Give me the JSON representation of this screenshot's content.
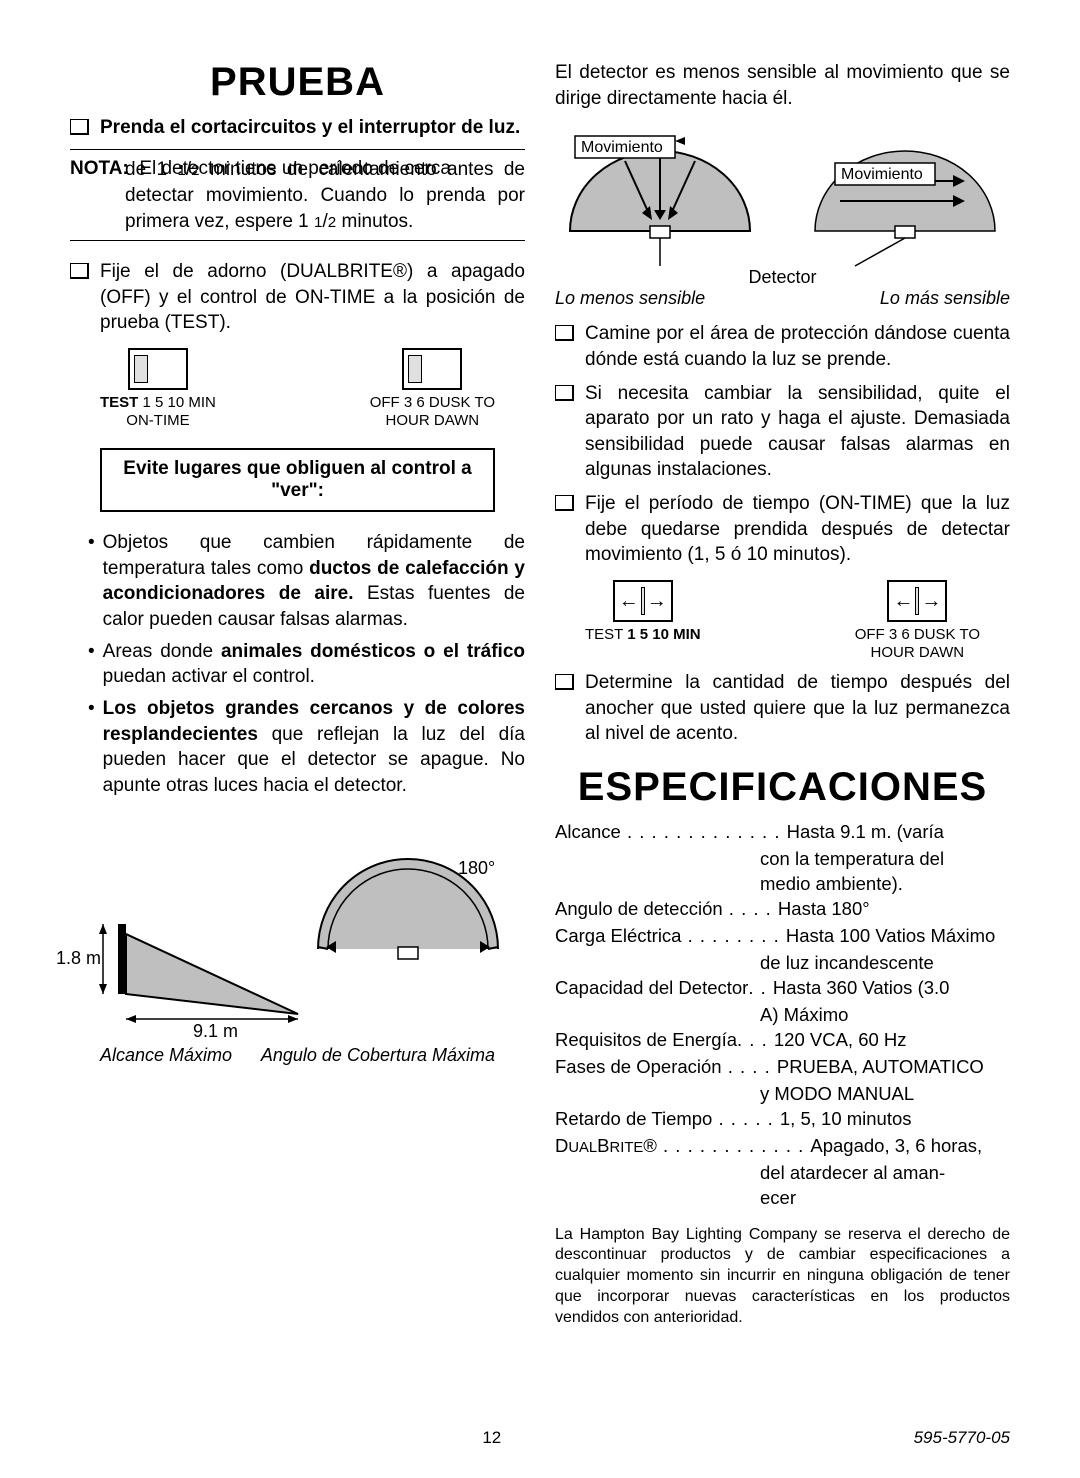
{
  "left": {
    "h1": "PRUEBA",
    "chk1": "Prenda el cortacircuitos y el interruptor de luz.",
    "nota_lead": "NOTA:",
    "nota_body": "El detector tiene un período de cerca de 1 ¹/₂ minutos de calentamiento antes de detectar movimiento. Cuando lo prenda por primera vez, espere 1 ¹/₂ minutos.",
    "chk2_pre": "Fije el de adorno (D",
    "chk2_brand": "UAL",
    "chk2_brand2": "B",
    "chk2_brand3": "RITE",
    "chk2_post": "®) a apagado (OFF) y el control de ON-TIME a la posición de prueba (TEST).",
    "sw1": {
      "line1_bold": "TEST",
      "line1": " 1 5 10 MIN",
      "line2": "ON-TIME"
    },
    "sw2": {
      "line1_bold": "OFF  3  6  DUSK TO",
      "line2_bold": "HOUR   DAWN"
    },
    "avoid": "Evite lugares que obliguen al control a \"ver\":",
    "b1_pre": "Objetos que cambien rápidamente de temperatura tales como ",
    "b1_bold": "ductos de calefacción y acondicionadores de aire.",
    "b1_post": " Estas fuentes de calor pueden causar falsas alarmas.",
    "b2_pre": "Areas donde ",
    "b2_bold": "animales domésticos o el tráfico",
    "b2_post": " puedan activar el control.",
    "b3_bold": "Los objetos grandes cercanos y de colores resplandecientes",
    "b3_post": " que reflejan la luz del día pueden hacer que el detector se apague. No apunte otras luces hacia el detector.",
    "diag": {
      "angle": "180°",
      "h": "1.8 m",
      "d": "9.1 m"
    },
    "diag_l": "Alcance Máximo",
    "diag_r": "Angulo de Cobertura Máxima"
  },
  "right": {
    "intro": "El detector es menos sensible al movimiento que se dirige directamente hacia él.",
    "mov": "Movimiento",
    "det": "Detector",
    "cap_l": "Lo menos sensible",
    "cap_r": "Lo más sensible",
    "chk1": "Camine por el área de protección dándose cuenta dónde está cuando la luz se prende.",
    "chk2": "Si necesita cambiar la sensibilidad, quite el aparato por un rato y haga el ajuste. Demasiada sensibilidad puede causar falsas alarmas en algunas instalaciones.",
    "chk3": "Fije el período de tiempo (ON-TIME) que la luz debe quedarse prendida después de detectar movimiento (1, 5 ó 10 minutos).",
    "sw1": {
      "line1_pre": "TEST ",
      "line1_bold": "1 5 10 MIN"
    },
    "sw2": {
      "line1_bold": "OFF  3  6  DUSK TO",
      "line2_bold": "HOUR   DAWN"
    },
    "chk4": "Determine la cantidad de tiempo después del anocher que usted quiere que la luz permanezca al nivel de acento.",
    "h1": "ESPECIFICACIONES",
    "specs": [
      {
        "l": "Alcance",
        "dots": " . . . . . . . . . . . . . ",
        "r": "Hasta 9.1 m. (varía",
        "cont": [
          "con la temperatura del",
          "medio ambiente)."
        ]
      },
      {
        "l": "Angulo de detección",
        "dots": " . . . . ",
        "r": "Hasta 180°",
        "cont": []
      },
      {
        "l": "Carga Eléctrica",
        "dots": " . . . . . . . . ",
        "r": "Hasta 100 Vatios Máximo",
        "cont": [
          "de luz incandescente"
        ]
      },
      {
        "l": "Capacidad del Detector",
        "dots": ". . ",
        "r": "Hasta 360 Vatios (3.0",
        "cont": [
          "A) Máximo"
        ]
      },
      {
        "l": "Requisitos de Energía",
        "dots": ". . . ",
        "r": "120 VCA, 60 Hz",
        "cont": []
      },
      {
        "l": "Fases de Operación",
        "dots": " . . . . ",
        "r": "PRUEBA, AUTOMATICO",
        "cont": [
          "y MODO MANUAL"
        ]
      },
      {
        "l": "Retardo de Tiempo",
        "dots": " . . . . . ",
        "r": "1, 5, 10 minutos",
        "cont": []
      },
      {
        "l": "DUALBRITE®",
        "dots": " . . . . . . . . . . . . ",
        "r": "Apagado, 3, 6 horas,",
        "cont": [
          "del atardecer al aman-",
          "ecer"
        ]
      }
    ],
    "disclaimer": "La Hampton Bay Lighting Company se reserva el derecho de descontinuar productos y de cambiar especificaciones a cualquier momento sin incurrir en ninguna obligación de tener que incorporar nuevas características en los productos vendidos con anterioridad."
  },
  "footer": {
    "page": "12",
    "partno": "595-5770-05"
  }
}
